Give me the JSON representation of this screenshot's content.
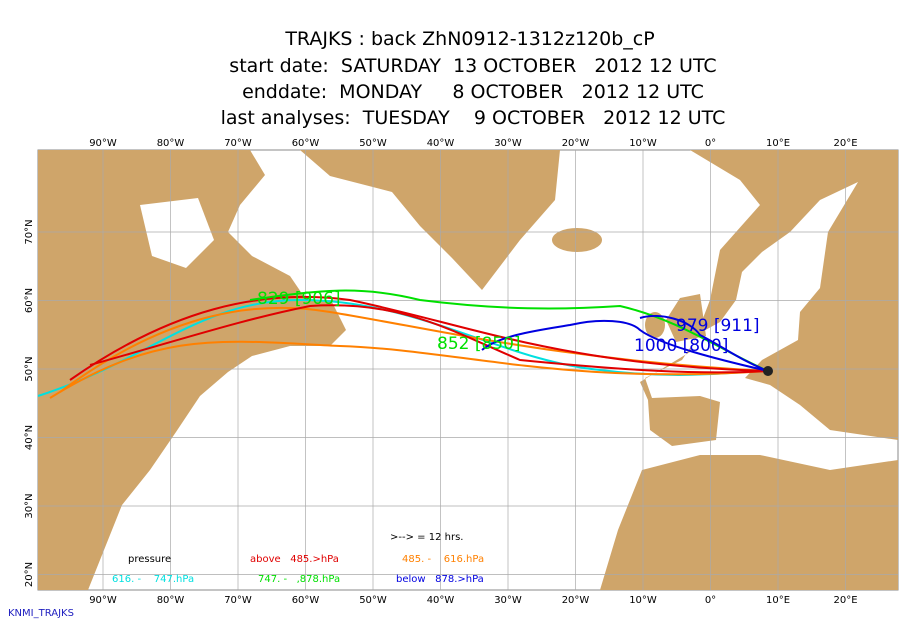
{
  "header": {
    "title": "TRAJKS : back ZhN0912-1312z120b_cP",
    "start": "start date:  SATURDAY  13 OCTOBER   2012 12 UTC",
    "end": "enddate:  MONDAY     8 OCTOBER   2012 12 UTC",
    "analyses": "last analyses:  TUESDAY    9 OCTOBER   2012 12 UTC"
  },
  "map": {
    "longitudes": [
      "90°W",
      "80°W",
      "70°W",
      "60°W",
      "50°W",
      "40°W",
      "30°W",
      "20°W",
      "10°W",
      "0°",
      "10°E",
      "20°E"
    ],
    "latitudes": [
      "70°N",
      "60°N",
      "50°N",
      "40°N",
      "30°N",
      "20°N"
    ],
    "annotations": [
      "829 [906]",
      "852 [850]",
      "979 [911]",
      "1000 [800]"
    ],
    "arrow_note": ">--> = 12 hrs."
  },
  "legend": {
    "title": "pressure",
    "above": "above   485.>hPa",
    "orange": "485. -    616.hPa",
    "cyan": "616. -    747.hPa",
    "green": "747. -   ,878.hPa",
    "below": "below   878.>hPa"
  },
  "footer": "KNMI_TRAJKS"
}
